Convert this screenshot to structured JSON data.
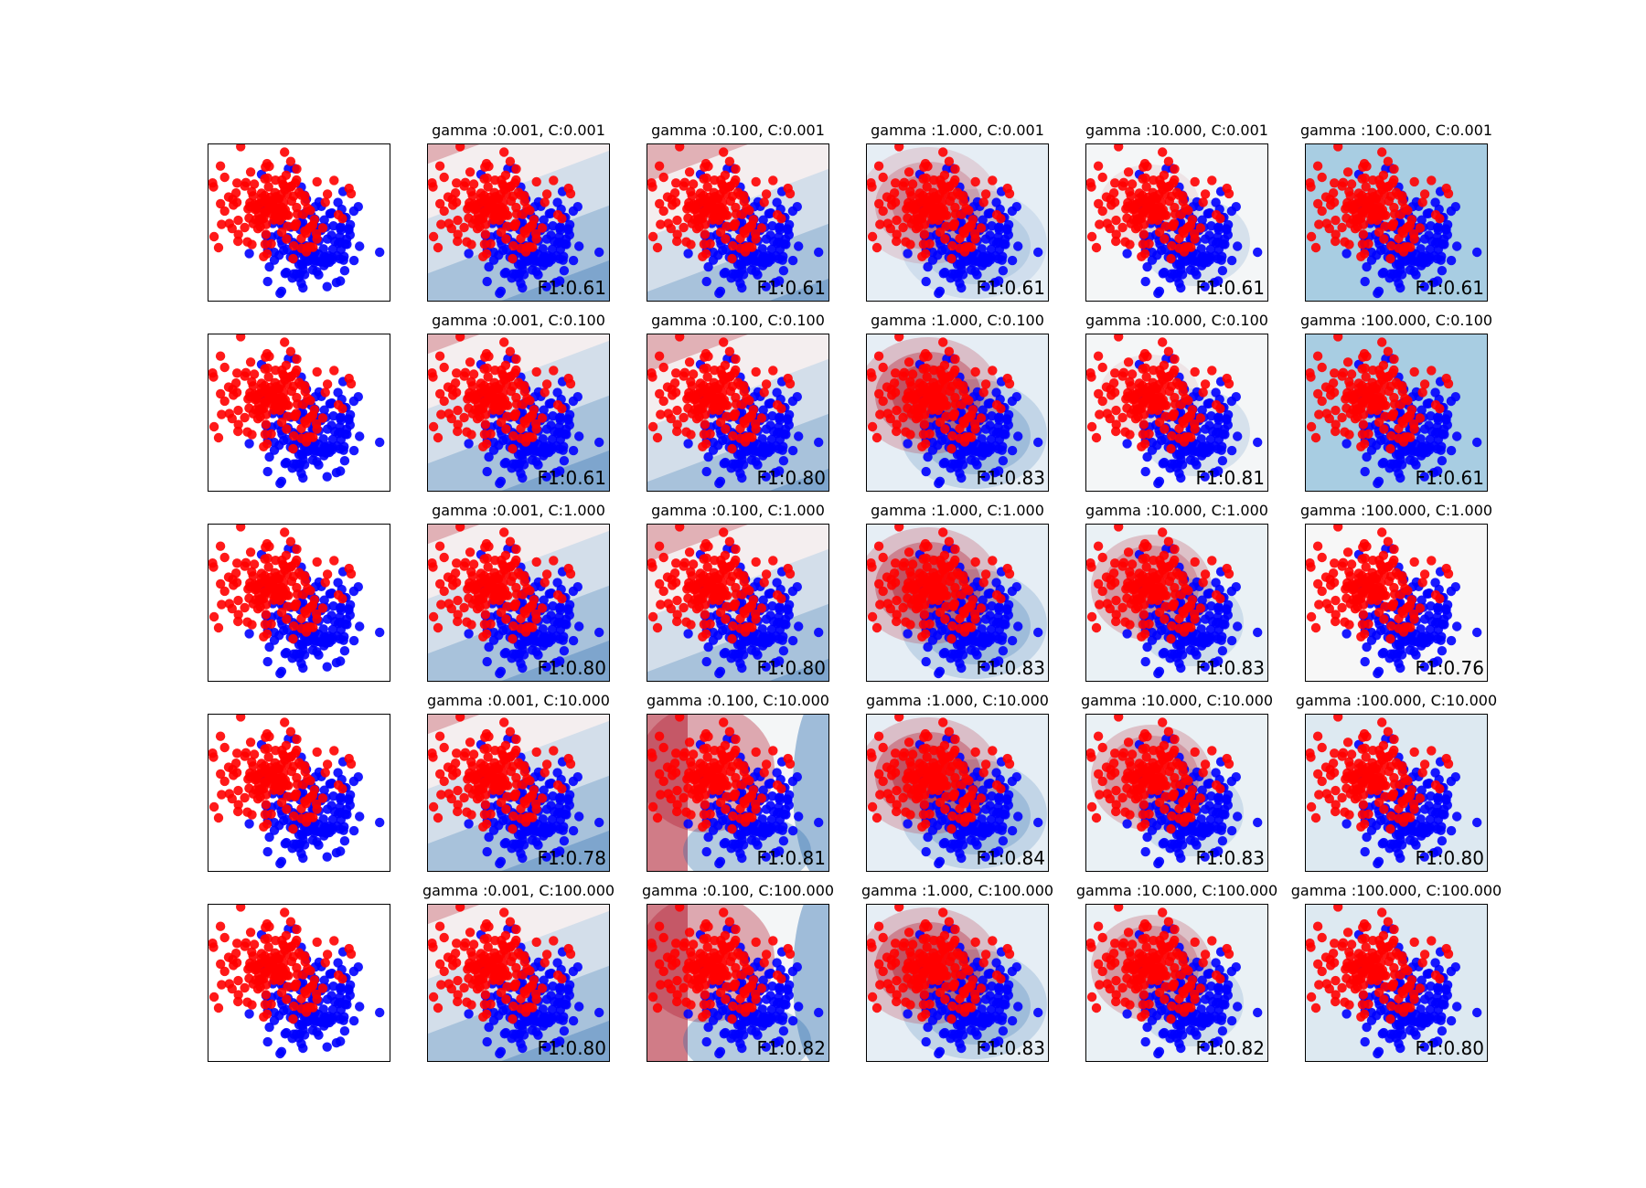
{
  "chart_data": {
    "type": "scatter",
    "description_of_grid": "SVM RBF decision functions over a gamma x C grid, with a raw-data column",
    "colors": {
      "class_0": "#ff0000",
      "class_1": "#0000ff",
      "negative_region": "#b2182b",
      "positive_region": "#2166ac",
      "axes_edge": "#000000"
    },
    "gamma_values": [
      "0.001",
      "0.100",
      "1.000",
      "10.000",
      "100.000"
    ],
    "C_values": [
      "0.001",
      "0.100",
      "1.000",
      "10.000",
      "100.000"
    ],
    "raw_data_panel": {
      "title": "",
      "grid": false
    },
    "panels": [
      [
        {
          "title": "gamma :0.001, C:0.001",
          "score_label": "F1:0.61",
          "f1": 0.61,
          "background": "linear"
        },
        {
          "title": "gamma :0.100, C:0.001",
          "score_label": "F1:0.61",
          "f1": 0.61,
          "background": "linear-strong"
        },
        {
          "title": "gamma :1.000, C:0.001",
          "score_label": "F1:0.61",
          "f1": 0.61,
          "background": "blob-light"
        },
        {
          "title": "gamma :10.000, C:0.001",
          "score_label": "F1:0.61",
          "f1": 0.61,
          "background": "blob-faint"
        },
        {
          "title": "gamma :100.000, C:0.001",
          "score_label": "F1:0.61",
          "f1": 0.61,
          "background": "flat-blue"
        }
      ],
      [
        {
          "title": "gamma :0.001, C:0.100",
          "score_label": "F1:0.61",
          "f1": 0.61,
          "background": "linear"
        },
        {
          "title": "gamma :0.100, C:0.100",
          "score_label": "F1:0.80",
          "f1": 0.8,
          "background": "linear-strong"
        },
        {
          "title": "gamma :1.000, C:0.100",
          "score_label": "F1:0.83",
          "f1": 0.83,
          "background": "blob"
        },
        {
          "title": "gamma :10.000, C:0.100",
          "score_label": "F1:0.81",
          "f1": 0.81,
          "background": "blob-faint"
        },
        {
          "title": "gamma :100.000, C:0.100",
          "score_label": "F1:0.61",
          "f1": 0.61,
          "background": "flat-blue"
        }
      ],
      [
        {
          "title": "gamma :0.001, C:1.000",
          "score_label": "F1:0.80",
          "f1": 0.8,
          "background": "linear"
        },
        {
          "title": "gamma :0.100, C:1.000",
          "score_label": "F1:0.80",
          "f1": 0.8,
          "background": "linear-strong"
        },
        {
          "title": "gamma :1.000, C:1.000",
          "score_label": "F1:0.83",
          "f1": 0.83,
          "background": "blob"
        },
        {
          "title": "gamma :10.000, C:1.000",
          "score_label": "F1:0.83",
          "f1": 0.83,
          "background": "halo"
        },
        {
          "title": "gamma :100.000, C:1.000",
          "score_label": "F1:0.76",
          "f1": 0.76,
          "background": "flat-white"
        }
      ],
      [
        {
          "title": "gamma :0.001, C:10.000",
          "score_label": "F1:0.78",
          "f1": 0.78,
          "background": "linear"
        },
        {
          "title": "gamma :0.100, C:10.000",
          "score_label": "F1:0.81",
          "f1": 0.81,
          "background": "wavy"
        },
        {
          "title": "gamma :1.000, C:10.000",
          "score_label": "F1:0.84",
          "f1": 0.84,
          "background": "blob"
        },
        {
          "title": "gamma :10.000, C:10.000",
          "score_label": "F1:0.83",
          "f1": 0.83,
          "background": "halo"
        },
        {
          "title": "gamma :100.000, C:10.000",
          "score_label": "F1:0.80",
          "f1": 0.8,
          "background": "flat-light"
        }
      ],
      [
        {
          "title": "gamma :0.001, C:100.000",
          "score_label": "F1:0.80",
          "f1": 0.8,
          "background": "linear"
        },
        {
          "title": "gamma :0.100, C:100.000",
          "score_label": "F1:0.82",
          "f1": 0.82,
          "background": "wavy"
        },
        {
          "title": "gamma :1.000, C:100.000",
          "score_label": "F1:0.83",
          "f1": 0.83,
          "background": "blob"
        },
        {
          "title": "gamma :10.000, C:100.000",
          "score_label": "F1:0.82",
          "f1": 0.82,
          "background": "halo"
        },
        {
          "title": "gamma :100.000, C:100.000",
          "score_label": "F1:0.80",
          "f1": 0.8,
          "background": "flat-light"
        }
      ]
    ],
    "grid": false,
    "legend": "none"
  }
}
